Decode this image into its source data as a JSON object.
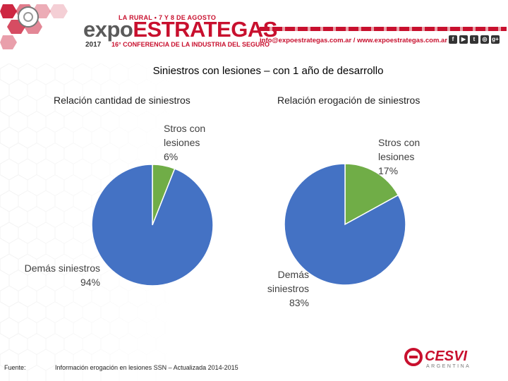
{
  "header": {
    "tagline": "LA RURAL • 7 Y 8 DE AGOSTO",
    "brand_a": "expo",
    "brand_b": "ESTRATEGAS",
    "year": "2017",
    "conference": "16° CONFERENCIA DE LA INDUSTRIA DEL SEGURO",
    "contact": "info@expoestrategas.com.ar / www.expoestrategas.com.ar",
    "social": [
      "f",
      "▶",
      "t",
      "◎",
      "g+"
    ]
  },
  "title": "Siniestros con lesiones – con 1 año de desarrollo",
  "footer": {
    "label": "Fuente:",
    "source": "Información erogación en lesiones SSN – Actualizada 2014-2015"
  },
  "logo_text": "CESVI",
  "logo_sub": "ARGENTINA",
  "colors": {
    "green": "#70ad47",
    "blue": "#4472c4",
    "red": "#c8102e"
  },
  "chart_data": [
    {
      "type": "pie",
      "title": "Relación cantidad de siniestros",
      "categories": [
        "Stros con lesiones",
        "Demás siniestros"
      ],
      "values": [
        6,
        94
      ],
      "unit": "%",
      "colors": [
        "#70ad47",
        "#4472c4"
      ],
      "labels": [
        {
          "lines": [
            "Stros con",
            "lesiones",
            "6%"
          ]
        },
        {
          "lines": [
            "Demás siniestros",
            "94%"
          ]
        }
      ]
    },
    {
      "type": "pie",
      "title": "Relación erogación de siniestros",
      "categories": [
        "Stros con lesiones",
        "Demás siniestros"
      ],
      "values": [
        17,
        83
      ],
      "unit": "%",
      "colors": [
        "#70ad47",
        "#4472c4"
      ],
      "labels": [
        {
          "lines": [
            "Stros con",
            "lesiones",
            "17%"
          ]
        },
        {
          "lines": [
            "Demás",
            "siniestros",
            "83%"
          ]
        }
      ]
    }
  ]
}
